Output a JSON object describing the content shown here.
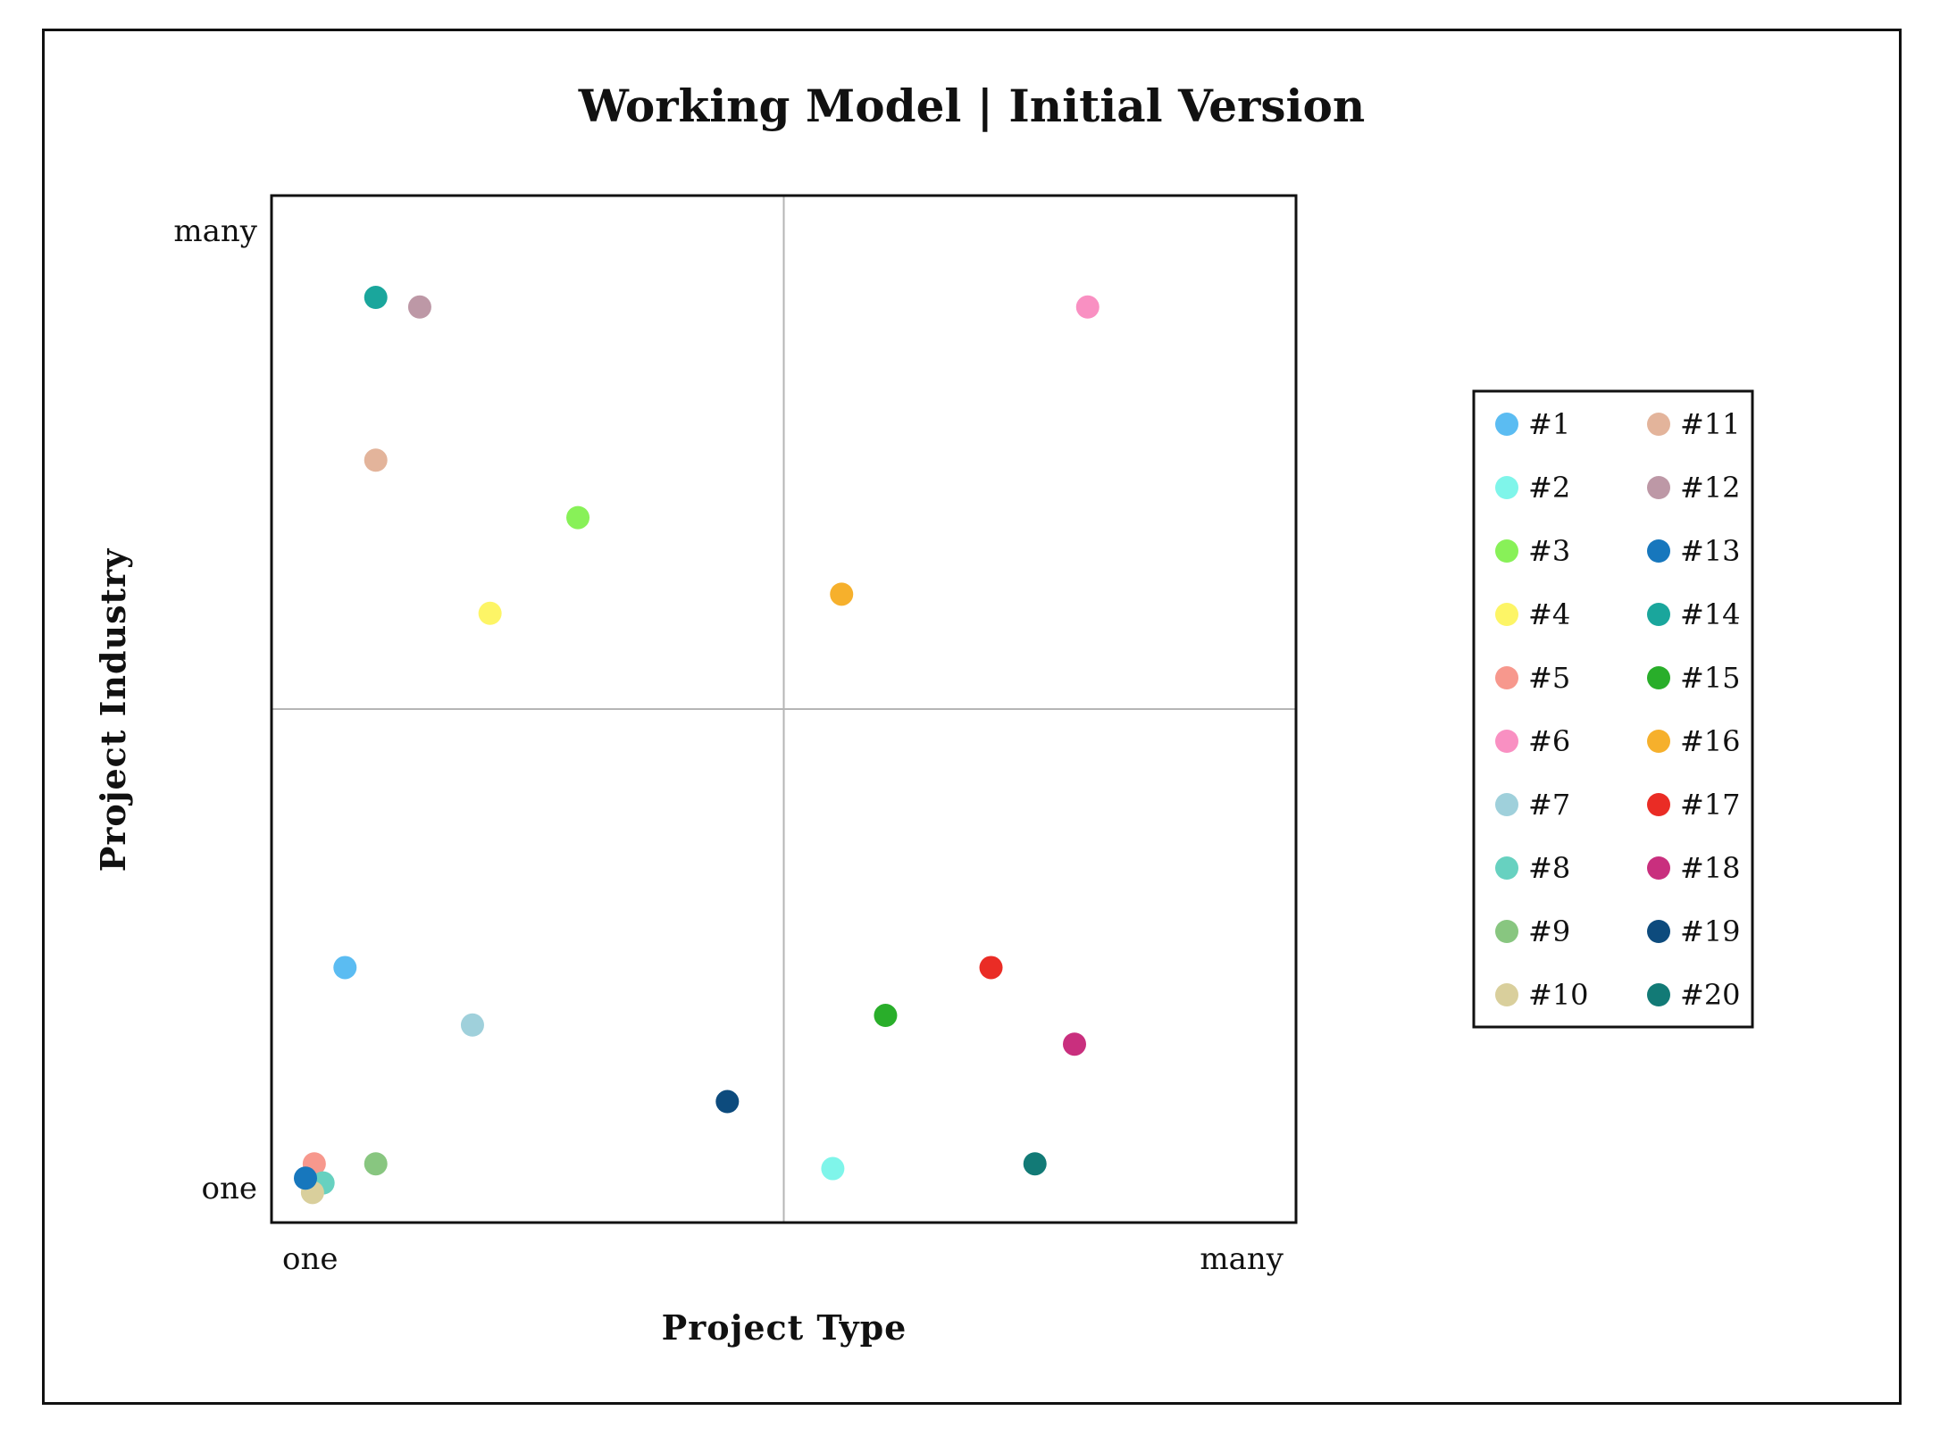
{
  "chart_data": {
    "type": "scatter",
    "title": "Working Model | Initial Version",
    "xlabel": "Project Type",
    "ylabel": "Project Industry",
    "xlim": [
      0,
      1
    ],
    "ylim": [
      0,
      1
    ],
    "x_ticks": [
      {
        "value": 0.0,
        "label": "one"
      },
      {
        "value": 1.0,
        "label": "many"
      }
    ],
    "y_ticks": [
      {
        "value": 0.0,
        "label": "one"
      },
      {
        "value": 1.0,
        "label": "many"
      }
    ],
    "quadrant_lines": {
      "x": 0.5,
      "y": 0.5
    },
    "legend_placement": "right",
    "points": [
      {
        "label": "#1",
        "x": 0.045,
        "y": 0.23,
        "color": "#5bbcf2"
      },
      {
        "label": "#2",
        "x": 0.6,
        "y": 0.02,
        "color": "#7ff5ea"
      },
      {
        "label": "#3",
        "x": 0.31,
        "y": 0.7,
        "color": "#88f158"
      },
      {
        "label": "#4",
        "x": 0.21,
        "y": 0.6,
        "color": "#fdf566"
      },
      {
        "label": "#5",
        "x": 0.01,
        "y": 0.025,
        "color": "#f7988d"
      },
      {
        "label": "#6",
        "x": 0.89,
        "y": 0.92,
        "color": "#f990c2"
      },
      {
        "label": "#7",
        "x": 0.19,
        "y": 0.17,
        "color": "#9fd0db"
      },
      {
        "label": "#8",
        "x": 0.02,
        "y": 0.005,
        "color": "#67d1c0"
      },
      {
        "label": "#9",
        "x": 0.08,
        "y": 0.025,
        "color": "#88c680"
      },
      {
        "label": "#10",
        "x": 0.008,
        "y": -0.005,
        "color": "#d9cf9c"
      },
      {
        "label": "#11",
        "x": 0.08,
        "y": 0.76,
        "color": "#e3b49b"
      },
      {
        "label": "#12",
        "x": 0.13,
        "y": 0.92,
        "color": "#bd98a6"
      },
      {
        "label": "#13",
        "x": 0.0,
        "y": 0.01,
        "color": "#1777bd"
      },
      {
        "label": "#14",
        "x": 0.08,
        "y": 0.93,
        "color": "#1aa69c"
      },
      {
        "label": "#15",
        "x": 0.66,
        "y": 0.18,
        "color": "#29ae2a"
      },
      {
        "label": "#16",
        "x": 0.61,
        "y": 0.62,
        "color": "#f6b02c"
      },
      {
        "label": "#17",
        "x": 0.78,
        "y": 0.23,
        "color": "#ea2c25"
      },
      {
        "label": "#18",
        "x": 0.875,
        "y": 0.15,
        "color": "#c92f7e"
      },
      {
        "label": "#19",
        "x": 0.48,
        "y": 0.09,
        "color": "#0d4b7d"
      },
      {
        "label": "#20",
        "x": 0.83,
        "y": 0.025,
        "color": "#127a76"
      }
    ]
  }
}
